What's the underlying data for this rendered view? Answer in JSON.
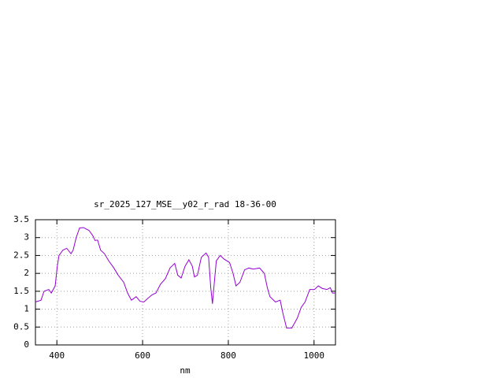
{
  "chart_data": {
    "type": "line",
    "title": "sr_2025_127_MSE__y02_r_rad 18-36-00",
    "x_label": "nm",
    "x": [
      350,
      363,
      370,
      381,
      387,
      396,
      401,
      405,
      414,
      423,
      433,
      438,
      445,
      453,
      462,
      475,
      484,
      489,
      495,
      502,
      511,
      521,
      533,
      543,
      556,
      565,
      574,
      585,
      594,
      603,
      612,
      622,
      631,
      642,
      653,
      664,
      675,
      682,
      690,
      699,
      708,
      716,
      721,
      728,
      737,
      748,
      754,
      759,
      763,
      767,
      772,
      781,
      790,
      803,
      811,
      818,
      827,
      838,
      848,
      858,
      873,
      884,
      891,
      897,
      910,
      921,
      928,
      936,
      948,
      961,
      970,
      979,
      990,
      1001,
      1010,
      1019,
      1030,
      1038,
      1043,
      1050
    ],
    "series": [
      {
        "color": "#9400d3",
        "values": [
          1.2,
          1.25,
          1.5,
          1.55,
          1.45,
          1.65,
          2.2,
          2.5,
          2.65,
          2.7,
          2.55,
          2.65,
          3.0,
          3.27,
          3.28,
          3.2,
          3.05,
          2.92,
          2.93,
          2.65,
          2.55,
          2.35,
          2.15,
          1.95,
          1.75,
          1.45,
          1.25,
          1.35,
          1.22,
          1.2,
          1.3,
          1.4,
          1.45,
          1.7,
          1.85,
          2.15,
          2.28,
          1.95,
          1.87,
          2.2,
          2.38,
          2.2,
          1.9,
          1.95,
          2.45,
          2.57,
          2.45,
          1.6,
          1.15,
          1.7,
          2.35,
          2.5,
          2.4,
          2.3,
          2.0,
          1.65,
          1.75,
          2.1,
          2.15,
          2.12,
          2.15,
          2.0,
          1.6,
          1.35,
          1.2,
          1.25,
          0.85,
          0.47,
          0.47,
          0.75,
          1.05,
          1.2,
          1.55,
          1.55,
          1.65,
          1.58,
          1.55,
          1.6,
          1.45,
          1.45
        ]
      }
    ],
    "xlim": [
      350,
      1050
    ],
    "xticks": [
      400,
      600,
      800,
      1000
    ],
    "ylim": [
      0,
      3.5
    ],
    "yticks": [
      0,
      0.5,
      1,
      1.5,
      2,
      2.5,
      3,
      3.5
    ],
    "grid": true
  }
}
